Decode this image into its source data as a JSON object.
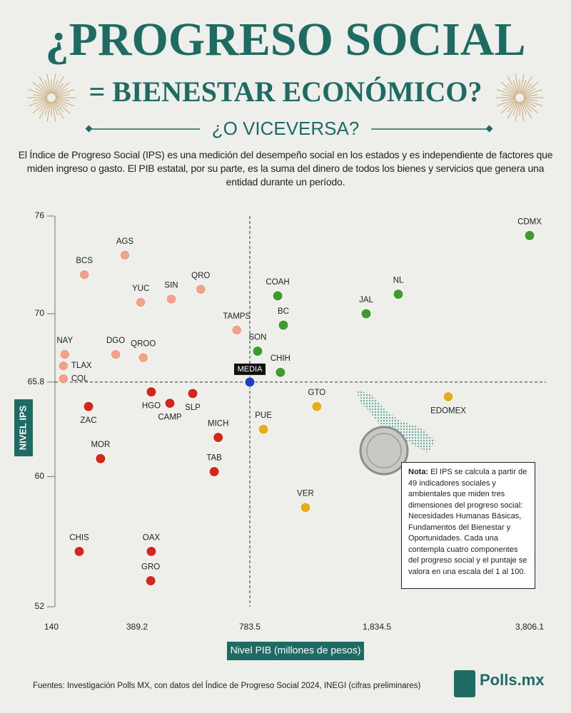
{
  "header": {
    "title": "¿PROGRESO SOCIAL",
    "title_2": "= BIENESTAR ECONÓMICO?",
    "subtitle": "¿O VICEVERSA?",
    "description": "El Índice de Progreso Social (IPS) es una medición del desempeño social en los estados y es independiente de factores que miden ingreso o gasto. El PIB estatal, por su parte, es la suma del dinero de todos los bienes y servicios que genera una entidad durante un período."
  },
  "chart_data": {
    "type": "scatter",
    "xlabel": "Nivel PIB (millones de pesos)",
    "ylabel": "NIVEL IPS",
    "xlim": [
      140,
      3806.1
    ],
    "ylim": [
      52,
      76
    ],
    "xticks": [
      140,
      389.2,
      783.5,
      {
        "value": 1834.5,
        "label": "1,834.5"
      },
      {
        "value": 3806.1,
        "label": "3,806.1"
      }
    ],
    "yticks": [
      52,
      60,
      65.8,
      70,
      76
    ],
    "grid": false,
    "media": {
      "label": "MEDIA",
      "x": 783.5,
      "y": 65.8,
      "color": "#1d3fc4"
    },
    "series": [
      {
        "color": "#3f9a2f",
        "labels": [
          "CDMX",
          "NL",
          "JAL",
          "COAH",
          "BC",
          "SON",
          "CHIH"
        ],
        "x": [
          3806.1,
          2111,
          1746,
          1014,
          1061,
          848,
          1037
        ],
        "values": [
          74.8,
          71.2,
          70.0,
          71.1,
          69.3,
          67.7,
          66.4
        ]
      },
      {
        "color": "#e3ad1c",
        "labels": [
          "EDOMEX",
          "GTO",
          "PUE",
          "VER"
        ],
        "x": [
          2756,
          1338,
          896,
          1244
        ],
        "values": [
          64.9,
          64.3,
          62.9,
          58.1
        ]
      },
      {
        "color": "#d4271c",
        "labels": [
          "ZAC",
          "HGO",
          "CAMP",
          "SLP",
          "MICH",
          "MOR",
          "TAB",
          "CHIS",
          "OAX",
          "GRO"
        ],
        "x": [
          248,
          439,
          504,
          584,
          673,
          283,
          659,
          221,
          439,
          437
        ],
        "values": [
          64.3,
          65.2,
          64.5,
          65.1,
          62.4,
          61.1,
          60.3,
          55.4,
          55.4,
          53.6
        ]
      },
      {
        "color": "#f0a389",
        "labels": [
          "AGS",
          "BCS",
          "YUC",
          "SIN",
          "QRO",
          "TAMPS",
          "NAY",
          "DGO",
          "QROO",
          "TLAX",
          "COL"
        ],
        "x": [
          354,
          236,
          402,
          509,
          612,
          738,
          179,
          327,
          411,
          175,
          175
        ],
        "values": [
          73.6,
          72.4,
          70.7,
          70.9,
          71.5,
          69.0,
          67.5,
          67.5,
          67.3,
          66.8,
          66.0
        ]
      }
    ],
    "note": {
      "label": "Nota:",
      "text": "El IPS se calcula a partir de 49 indicadores sociales y ambientales que miden tres dimensiones del progreso social: Necesidades Humanas Básicas, Fundamentos del Bienestar y Oportunidades. Cada una contempla cuatro componentes del progreso social y el puntaje se valora en una escala del 1 al 100."
    },
    "source": "Fuentes: Investigación Polls MX, con datos del Índice de Progreso Social 2024, INEGI (cifras preliminares)"
  },
  "footer": {
    "logo": "Polls.mx"
  }
}
